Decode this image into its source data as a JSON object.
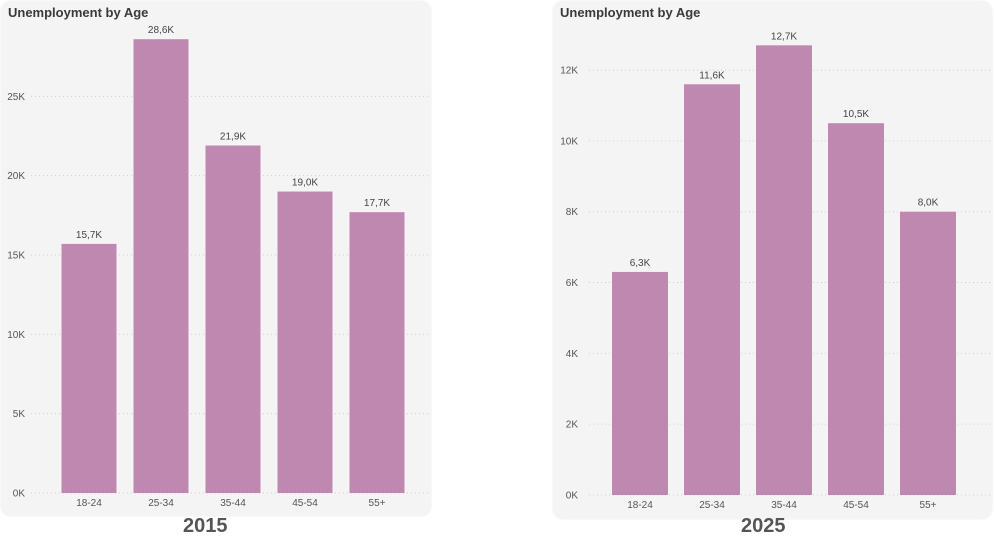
{
  "bar_color": "#bf88b1",
  "chart_data": [
    {
      "type": "bar",
      "title": "Unemployment by Age",
      "caption": "2015",
      "categories": [
        "18-24",
        "25-34",
        "35-44",
        "45-54",
        "55+"
      ],
      "values": [
        15700,
        28600,
        21900,
        19000,
        17700
      ],
      "data_labels": [
        "15,7K",
        "28,6K",
        "21,9K",
        "19,0K",
        "17,7K"
      ],
      "yticks": [
        0,
        5000,
        10000,
        15000,
        20000,
        25000
      ],
      "ytick_labels": [
        "0K",
        "5K",
        "10K",
        "15K",
        "20K",
        "25K"
      ],
      "ylim": [
        0,
        30000
      ],
      "grid": true
    },
    {
      "type": "bar",
      "title": "Unemployment by Age",
      "caption": "2025",
      "categories": [
        "18-24",
        "25-34",
        "35-44",
        "45-54",
        "55+"
      ],
      "values": [
        6300,
        11600,
        12700,
        10500,
        8000
      ],
      "data_labels": [
        "6,3K",
        "11,6K",
        "12,7K",
        "10,5K",
        "8,0K"
      ],
      "yticks": [
        0,
        2000,
        4000,
        6000,
        8000,
        10000,
        12000
      ],
      "ytick_labels": [
        "0K",
        "2K",
        "4K",
        "6K",
        "8K",
        "10K",
        "12K"
      ],
      "ylim": [
        0,
        13500
      ],
      "grid": true
    }
  ]
}
